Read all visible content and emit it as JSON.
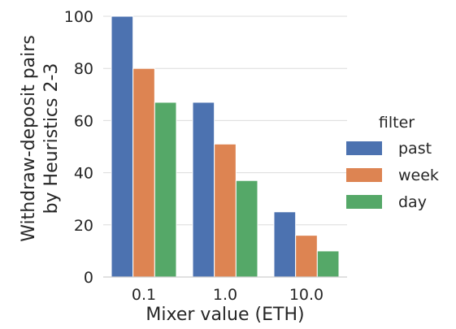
{
  "chart_data": {
    "type": "bar",
    "title": "",
    "xlabel": "Mixer value (ETH)",
    "ylabel": [
      "Withdraw-deposit pairs",
      "by Heuristics 2-3"
    ],
    "categories": [
      "0.1",
      "1.0",
      "10.0"
    ],
    "series": [
      {
        "name": "past",
        "values": [
          100,
          67,
          25
        ],
        "color": "#4c72b0"
      },
      {
        "name": "week",
        "values": [
          80,
          51,
          16
        ],
        "color": "#dd8452"
      },
      {
        "name": "day",
        "values": [
          67,
          37,
          10
        ],
        "color": "#55a868"
      }
    ],
    "ylim": [
      0,
      100
    ],
    "yticks": [
      0,
      20,
      40,
      60,
      80,
      100
    ],
    "grid": "horizontal",
    "legend": {
      "title": "filter",
      "placement": "right"
    }
  }
}
